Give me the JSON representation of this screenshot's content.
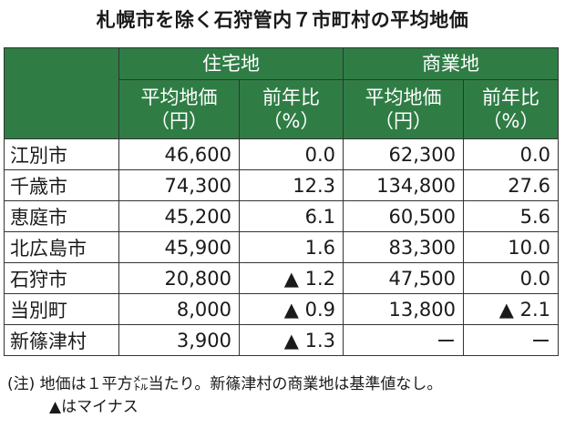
{
  "title": "札幌市を除く石狩管内７市町村の平均地価",
  "table": {
    "groups": [
      "住宅地",
      "商業地"
    ],
    "columns": [
      {
        "label": "平均地価",
        "unit": "（円）"
      },
      {
        "label": "前年比",
        "unit": "（%）"
      },
      {
        "label": "平均地価",
        "unit": "（円）"
      },
      {
        "label": "前年比",
        "unit": "（%）"
      }
    ],
    "rows": [
      [
        "江別市",
        "46,600",
        "0.0",
        "62,300",
        "0.0"
      ],
      [
        "千歳市",
        "74,300",
        "12.3",
        "134,800",
        "27.6"
      ],
      [
        "恵庭市",
        "45,200",
        "6.1",
        "60,500",
        "5.6"
      ],
      [
        "北広島市",
        "45,900",
        "1.6",
        "83,300",
        "10.0"
      ],
      [
        "石狩市",
        "20,800",
        "▲ 1.2",
        "47,500",
        "0.0"
      ],
      [
        "当別町",
        "8,000",
        "▲ 0.9",
        "13,800",
        "▲ 2.1"
      ],
      [
        "新篠津村",
        "3,900",
        "▲ 1.3",
        "ー",
        "ー"
      ]
    ]
  },
  "note": [
    "(注) 地価は１平方㍍当たり。新篠津村の商業地は基準値なし。",
    "▲はマイナス"
  ]
}
